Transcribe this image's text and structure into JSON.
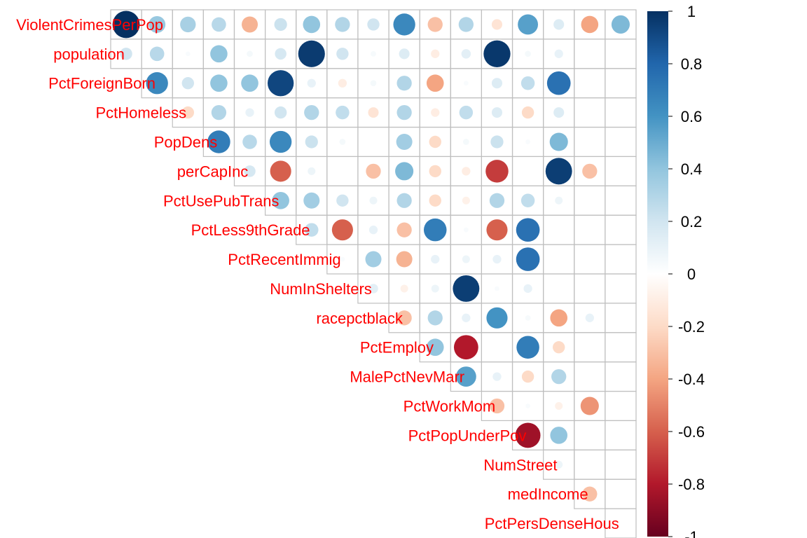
{
  "chart_data": {
    "type": "heatmap",
    "subtype": "corrplot-upper-circle",
    "title": "",
    "variables": [
      "ViolentCrimesPerPop",
      "population",
      "PctForeignBorn",
      "PctHomeless",
      "PopDens",
      "perCapInc",
      "PctUsePubTrans",
      "PctLess9thGrade",
      "PctRecentImmig",
      "NumInShelters",
      "racepctblack",
      "PctEmploy",
      "MalePctNevMarr",
      "PctWorkMom",
      "PctPopUnderPov",
      "NumStreet",
      "medIncome",
      "PctPersDenseHous"
    ],
    "matrix": [
      [
        1,
        0.38,
        0.33,
        0.28,
        -0.35,
        0.22,
        0.4,
        0.3,
        0.2,
        0.65,
        -0.3,
        0.3,
        -0.15,
        0.55,
        0.15,
        -0.4,
        0.45
      ],
      [
        0.2,
        0.28,
        0.03,
        0.4,
        0.05,
        0.18,
        0.96,
        0.2,
        0.04,
        0.15,
        -0.1,
        0.12,
        0.97,
        0.05,
        0.1
      ],
      [
        0.65,
        0.2,
        0.4,
        0.4,
        0.92,
        0.1,
        -0.1,
        0.05,
        0.3,
        -0.4,
        0.03,
        0.15,
        0.25,
        0.75
      ],
      [
        -0.2,
        0.3,
        0.1,
        0.2,
        0.3,
        0.25,
        -0.15,
        0.3,
        -0.1,
        0.25,
        0.15,
        -0.2,
        0.15
      ],
      [
        0.7,
        0.28,
        0.65,
        0.22,
        0.05,
        0,
        0.35,
        -0.2,
        0.05,
        0.22,
        0.03,
        0.45
      ],
      [
        0.18,
        -0.6,
        0.08,
        0,
        -0.3,
        0.45,
        -0.2,
        -0.1,
        -0.7,
        0,
        0.95,
        -0.3
      ],
      [
        0.4,
        0.35,
        0.2,
        0.08,
        0.3,
        -0.2,
        -0.08,
        0.3,
        0.25,
        0.08
      ],
      [
        0.25,
        -0.6,
        0.1,
        -0.3,
        0.7,
        0.03,
        -0.6,
        0.75
      ],
      [
        0.03,
        0.35,
        -0.35,
        0.1,
        0.08,
        0.1,
        0.75
      ],
      [
        0.12,
        -0.08,
        0.08,
        0.95,
        0.03,
        0.1
      ],
      [
        -0.3,
        0.3,
        0.1,
        0.6,
        0.04,
        -0.4,
        0.1
      ],
      [
        0.4,
        -0.8,
        0,
        0.7,
        -0.2
      ],
      [
        0.55,
        0.1,
        -0.2,
        0.3
      ],
      [
        -0.3,
        0.03,
        -0.08,
        -0.45
      ],
      [
        -0.85,
        0.4
      ],
      [
        0.08
      ],
      [
        -0.3
      ],
      []
    ],
    "colorbar": {
      "range": [
        -1,
        1
      ],
      "ticks": [
        "1",
        "0.8",
        "0.6",
        "0.4",
        "0.2",
        "0",
        "-0.2",
        "-0.4",
        "-0.6",
        "-0.8",
        "-1"
      ],
      "colors": [
        "#67001f",
        "#b2182b",
        "#d6604d",
        "#f4a582",
        "#fddbc7",
        "#ffffff",
        "#d1e5f0",
        "#92c5de",
        "#4393c3",
        "#2166ac",
        "#053061"
      ]
    }
  }
}
